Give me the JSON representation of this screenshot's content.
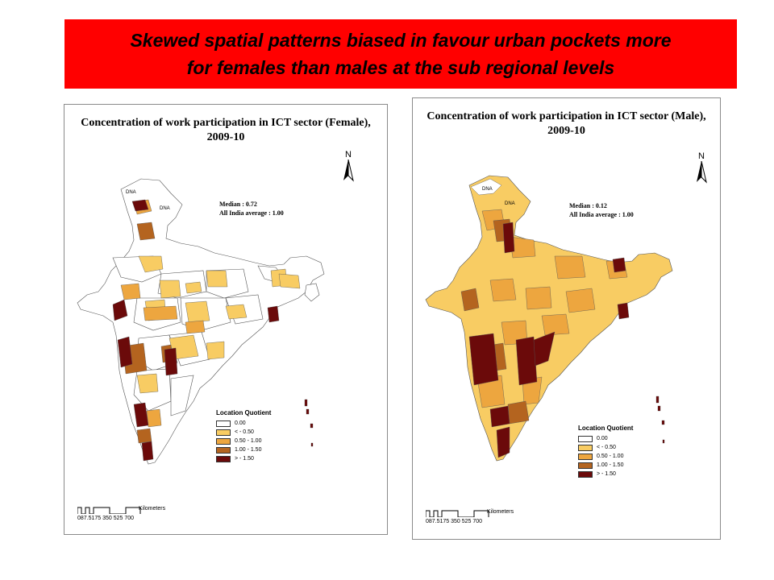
{
  "banner": {
    "line1": "Skewed spatial patterns biased in favour urban pockets more",
    "line2": "for females than males at the sub regional levels"
  },
  "colors": {
    "banner_bg": "#ff0000",
    "class_0": "#ffffff",
    "class_1": "#f8cc63",
    "class_2": "#eda63f",
    "class_3": "#b4641f",
    "class_4": "#6b0a0a"
  },
  "maps": {
    "female": {
      "title_line1": "Concentration of work participation in ICT sector (Female),",
      "title_line2": "2009-10",
      "median": "Median : 0.72",
      "average": "All India average : 1.00",
      "north": "N",
      "dna1": "DNA",
      "dna2": "DNA",
      "legend_title": "Location Quotient",
      "legend": [
        "0.00",
        "<    - 0.50",
        "0.50 - 1.00",
        "1.00 - 1.50",
        ">    - 1.50"
      ],
      "scale_units": "Kilometers",
      "scale_ticks": "087.5175    350    525    700"
    },
    "male": {
      "title_line1": "Concentration of work participation in ICT sector (Male),",
      "title_line2": "2009-10",
      "median": "Median : 0.12",
      "average": "All India average : 1.00",
      "north": "N",
      "dna1": "DNA",
      "dna2": "DNA",
      "legend_title": "Location Quotient",
      "legend": [
        "0.00",
        "<    - 0.50",
        "0.50 - 1.00",
        "1.00 - 1.50",
        ">    - 1.50"
      ],
      "scale_units": "Kilometers",
      "scale_ticks": "087.5175    350    525    700"
    }
  }
}
